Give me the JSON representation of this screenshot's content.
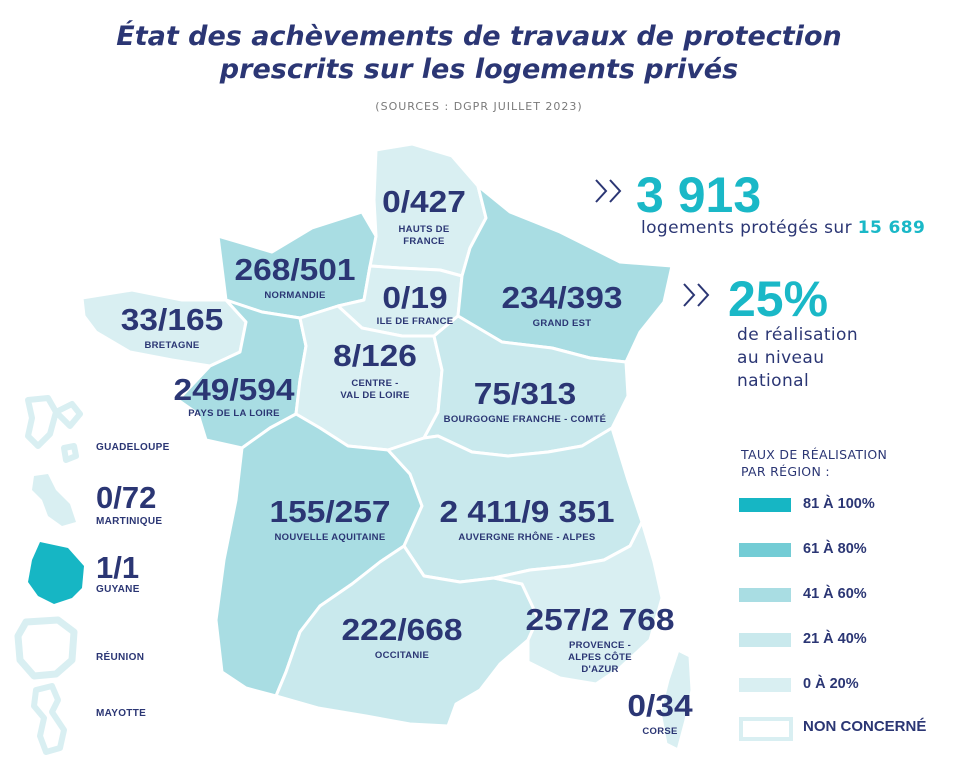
{
  "title_line1": "État des achèvements de travaux de protection",
  "title_line2": "prescrits sur les logements privés",
  "source": "(SOURCES : DGPR JUILLET 2023)",
  "stats": {
    "protected_value": "3 913",
    "protected_text": "logements protégés sur",
    "protected_total": "15 689",
    "rate_value": "25%",
    "rate_line1": "de réalisation",
    "rate_line2": "au niveau",
    "rate_line3": "national"
  },
  "regions": [
    {
      "id": "hauts-de-france",
      "value": "0/427",
      "name1": "HAUTS DE",
      "name2": "FRANCE",
      "rate": 0
    },
    {
      "id": "normandie",
      "value": "268/501",
      "name1": "NORMANDIE",
      "name2": "",
      "rate": 53
    },
    {
      "id": "ile-de-france",
      "value": "0/19",
      "name1": "ILE DE FRANCE",
      "name2": "",
      "rate": 0
    },
    {
      "id": "grand-est",
      "value": "234/393",
      "name1": "GRAND EST",
      "name2": "",
      "rate": 60
    },
    {
      "id": "bretagne",
      "value": "33/165",
      "name1": "BRETAGNE",
      "name2": "",
      "rate": 20
    },
    {
      "id": "centre-val-de-loire",
      "value": "8/126",
      "name1": "CENTRE -",
      "name2": "VAL DE LOIRE",
      "rate": 6
    },
    {
      "id": "pays-de-la-loire",
      "value": "249/594",
      "name1": "PAYS DE LA LOIRE",
      "name2": "",
      "rate": 42
    },
    {
      "id": "bourgogne-franche-comte",
      "value": "75/313",
      "name1": "BOURGOGNE FRANCHE - COMTÉ",
      "name2": "",
      "rate": 24
    },
    {
      "id": "nouvelle-aquitaine",
      "value": "155/257",
      "name1": "NOUVELLE AQUITAINE",
      "name2": "",
      "rate": 60
    },
    {
      "id": "auvergne-rhone-alpes",
      "value": "2 411/9 351",
      "name1": "AUVERGNE RHÔNE - ALPES",
      "name2": "",
      "rate": 26
    },
    {
      "id": "occitanie",
      "value": "222/668",
      "name1": "OCCITANIE",
      "name2": "",
      "rate": 33
    },
    {
      "id": "provence-alpes-cote-azur",
      "value": "257/2 768",
      "name1": "PROVENCE -",
      "name2": "ALPES CÔTE",
      "name3": "D'AZUR",
      "rate": 9
    },
    {
      "id": "corse",
      "value": "0/34",
      "name1": "CORSE",
      "name2": "",
      "rate": 0
    }
  ],
  "overseas": [
    {
      "id": "guadeloupe",
      "name": "GUADELOUPE",
      "value": ""
    },
    {
      "id": "martinique",
      "name": "MARTINIQUE",
      "value": "0/72"
    },
    {
      "id": "guyane",
      "name": "GUYANE",
      "value": "1/1"
    },
    {
      "id": "reunion",
      "name": "RÉUNION",
      "value": ""
    },
    {
      "id": "mayotte",
      "name": "MAYOTTE",
      "value": ""
    }
  ],
  "legend": {
    "title_line1": "TAUX DE RÉALISATION",
    "title_line2": "PAR RÉGION :",
    "items": [
      {
        "label": "81 À 100%",
        "color": "#16b6c4"
      },
      {
        "label": "61 À 80%",
        "color": "#73ccd5"
      },
      {
        "label": "41 À 60%",
        "color": "#a9dde3"
      },
      {
        "label": "21 À 40%",
        "color": "#c9e9ed"
      },
      {
        "label": "0 À 20%",
        "color": "#d9eff2"
      },
      {
        "label": "NON CONCERNÉ",
        "color": "#ffffff"
      }
    ]
  },
  "colors": {
    "navy": "#2b3674",
    "accent": "#1ab8c7",
    "rate_41_60": "#a9dde3",
    "rate_21_40": "#c9e9ed",
    "rate_0_20": "#d9eff2",
    "guyane": "#16b6c4"
  }
}
